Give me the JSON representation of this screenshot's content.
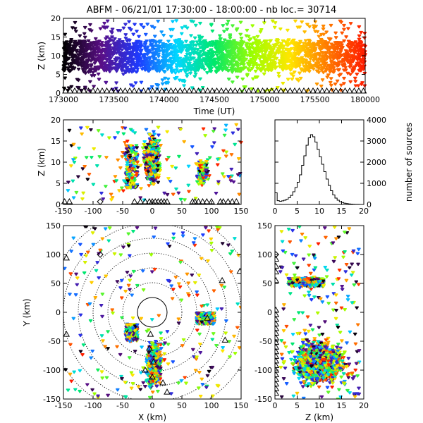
{
  "title": "ABFM - 06/21/01 17:30:00 - 18:00:00 - nb loc.=  30714",
  "chart_data": [
    {
      "id": "time_height",
      "type": "scatter",
      "xlabel": "Time (UT)",
      "ylabel": "Z (km)",
      "xlim": [
        173000,
        180000
      ],
      "ylim": [
        0,
        20
      ],
      "xticks": [
        "173000",
        "173500",
        "174000",
        "174500",
        "175000",
        "175500",
        "180000"
      ],
      "yticks": [
        "0",
        "5",
        "10",
        "15",
        "20"
      ],
      "color_encoding": "time",
      "colormap": [
        "#000000",
        "#5a0f86",
        "#1d3bff",
        "#00d7ff",
        "#00e86a",
        "#9cff00",
        "#ffe600",
        "#ff7a00",
        "#ff1a00"
      ],
      "z_core_range": [
        6,
        14
      ],
      "z_spread_range": [
        0.5,
        19.5
      ]
    },
    {
      "id": "x_height",
      "type": "scatter",
      "xlabel": "",
      "ylabel": "Z (km)",
      "xlim": [
        -150,
        150
      ],
      "ylim": [
        0,
        20
      ],
      "xticks": [
        "-150",
        "-100",
        "-50",
        "0",
        "50",
        "100",
        "150"
      ],
      "yticks": [
        "0",
        "5",
        "10",
        "15",
        "20"
      ],
      "clusters": [
        {
          "x_range": [
            -20,
            20
          ],
          "z_range": [
            2,
            19
          ],
          "weight": 0.55
        },
        {
          "x_range": [
            70,
            100
          ],
          "z_range": [
            3,
            12
          ],
          "weight": 0.2
        },
        {
          "x_range": [
            -45,
            -25
          ],
          "z_range": [
            4,
            14
          ],
          "weight": 0.12
        },
        {
          "x_range": [
            -150,
            150
          ],
          "z_range": [
            1,
            19
          ],
          "weight": 0.13
        }
      ]
    },
    {
      "id": "height_histogram",
      "type": "bar",
      "xlabel": "",
      "ylabel": "number of sources",
      "xlim": [
        0,
        20
      ],
      "ylim": [
        0,
        4000
      ],
      "xticks": [
        "0",
        "5",
        "10",
        "15",
        "20"
      ],
      "yticks": [
        "0",
        "1000",
        "2000",
        "3000",
        "4000"
      ],
      "bin_width": 0.5,
      "values": [
        550,
        180,
        150,
        170,
        200,
        250,
        320,
        430,
        600,
        800,
        1050,
        1400,
        1850,
        2300,
        2800,
        3150,
        3300,
        3200,
        2950,
        2600,
        2250,
        1900,
        1550,
        1200,
        900,
        650,
        450,
        300,
        200,
        130,
        90,
        60,
        40,
        25,
        15,
        10,
        5,
        3,
        2,
        1
      ]
    },
    {
      "id": "plan_view",
      "type": "scatter",
      "xlabel": "X (km)",
      "ylabel": "Y (km)",
      "xlim": [
        -150,
        150
      ],
      "ylim": [
        -150,
        150
      ],
      "xticks": [
        "-150",
        "-100",
        "-50",
        "0",
        "50",
        "100",
        "150"
      ],
      "yticks": [
        "-150",
        "-100",
        "-50",
        "0",
        "50",
        "100",
        "150"
      ],
      "range_rings_km": [
        25,
        50,
        75,
        100,
        125,
        150,
        175
      ],
      "ring_center": [
        0,
        0
      ],
      "clusters": [
        {
          "x_range": [
            -15,
            20
          ],
          "y_range": [
            -145,
            -35
          ],
          "weight": 0.6
        },
        {
          "x_range": [
            75,
            105
          ],
          "y_range": [
            -20,
            0
          ],
          "weight": 0.15
        },
        {
          "x_range": [
            -45,
            -25
          ],
          "y_range": [
            -50,
            -20
          ],
          "weight": 0.1
        },
        {
          "x_range": [
            -150,
            150
          ],
          "y_range": [
            -150,
            150
          ],
          "weight": 0.15
        }
      ],
      "stations": [
        [
          -3,
          -38
        ],
        [
          -5,
          -62
        ],
        [
          2,
          -86
        ],
        [
          -12,
          -100
        ],
        [
          0,
          -112
        ],
        [
          18,
          -122
        ],
        [
          25,
          -138
        ],
        [
          93,
          -10
        ],
        [
          123,
          -48
        ],
        [
          -145,
          -38
        ],
        [
          118,
          55
        ],
        [
          -145,
          94
        ],
        [
          148,
          71
        ]
      ],
      "diamonds": [
        [
          -88,
          100
        ]
      ]
    },
    {
      "id": "z_y_view",
      "type": "scatter",
      "xlabel": "Z (km)",
      "ylabel": "",
      "xlim": [
        0,
        20
      ],
      "ylim": [
        -150,
        150
      ],
      "xticks": [
        "0",
        "5",
        "10",
        "15",
        "20"
      ],
      "yticks": [
        "-150",
        "-100",
        "-50",
        "0",
        "50",
        "100",
        "150"
      ],
      "clusters": [
        {
          "z_range": [
            1,
            19
          ],
          "y_range": [
            -145,
            -30
          ],
          "weight": 0.75
        },
        {
          "z_range": [
            3,
            11
          ],
          "y_range": [
            45,
            60
          ],
          "weight": 0.12
        },
        {
          "z_range": [
            1,
            19
          ],
          "y_range": [
            -150,
            150
          ],
          "weight": 0.13
        }
      ]
    }
  ]
}
